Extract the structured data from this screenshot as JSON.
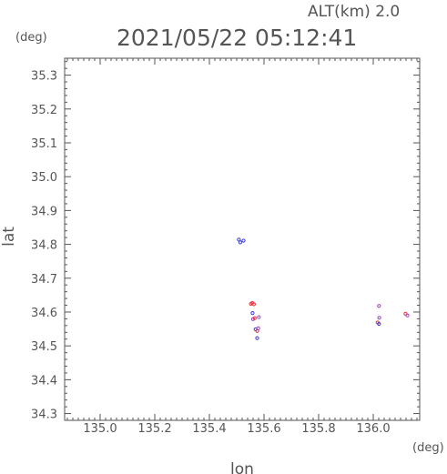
{
  "chart_data": {
    "type": "scatter",
    "title": "2021/05/22 05:12:41",
    "subtitle": "ALT(km) 2.0",
    "xlabel": "lon",
    "ylabel": "lat",
    "x_unit": "(deg)",
    "y_unit": "(deg)",
    "xlim": [
      134.87,
      136.17
    ],
    "ylim": [
      34.28,
      35.35
    ],
    "x_ticks": [
      "135.0",
      "135.2",
      "135.4",
      "135.6",
      "135.8",
      "136.0"
    ],
    "y_ticks": [
      "34.3",
      "34.4",
      "34.5",
      "34.6",
      "34.7",
      "34.8",
      "34.9",
      "35.0",
      "35.1",
      "35.2",
      "35.3"
    ],
    "grid": false,
    "colors": {
      "red": "#e8303a",
      "blue": "#3a3ad8",
      "purple": "#a040c0",
      "axis": "#555555"
    },
    "series": [
      {
        "points": [
          {
            "x": 135.508,
            "y": 34.814,
            "c": "blue"
          },
          {
            "x": 135.513,
            "y": 34.806,
            "c": "blue"
          },
          {
            "x": 135.525,
            "y": 34.811,
            "c": "blue"
          },
          {
            "x": 135.552,
            "y": 34.624,
            "c": "red"
          },
          {
            "x": 135.557,
            "y": 34.627,
            "c": "red"
          },
          {
            "x": 135.563,
            "y": 34.623,
            "c": "red"
          },
          {
            "x": 135.558,
            "y": 34.597,
            "c": "blue"
          },
          {
            "x": 135.56,
            "y": 34.579,
            "c": "purple"
          },
          {
            "x": 135.566,
            "y": 34.582,
            "c": "red"
          },
          {
            "x": 135.581,
            "y": 34.585,
            "c": "purple"
          },
          {
            "x": 135.569,
            "y": 34.549,
            "c": "blue"
          },
          {
            "x": 135.575,
            "y": 34.544,
            "c": "red"
          },
          {
            "x": 135.579,
            "y": 34.552,
            "c": "purple"
          },
          {
            "x": 135.575,
            "y": 34.523,
            "c": "blue"
          },
          {
            "x": 136.021,
            "y": 34.618,
            "c": "purple"
          },
          {
            "x": 136.022,
            "y": 34.583,
            "c": "purple"
          },
          {
            "x": 136.016,
            "y": 34.569,
            "c": "red"
          },
          {
            "x": 136.021,
            "y": 34.565,
            "c": "blue"
          },
          {
            "x": 136.118,
            "y": 34.595,
            "c": "red"
          },
          {
            "x": 136.125,
            "y": 34.59,
            "c": "purple"
          }
        ]
      }
    ]
  }
}
